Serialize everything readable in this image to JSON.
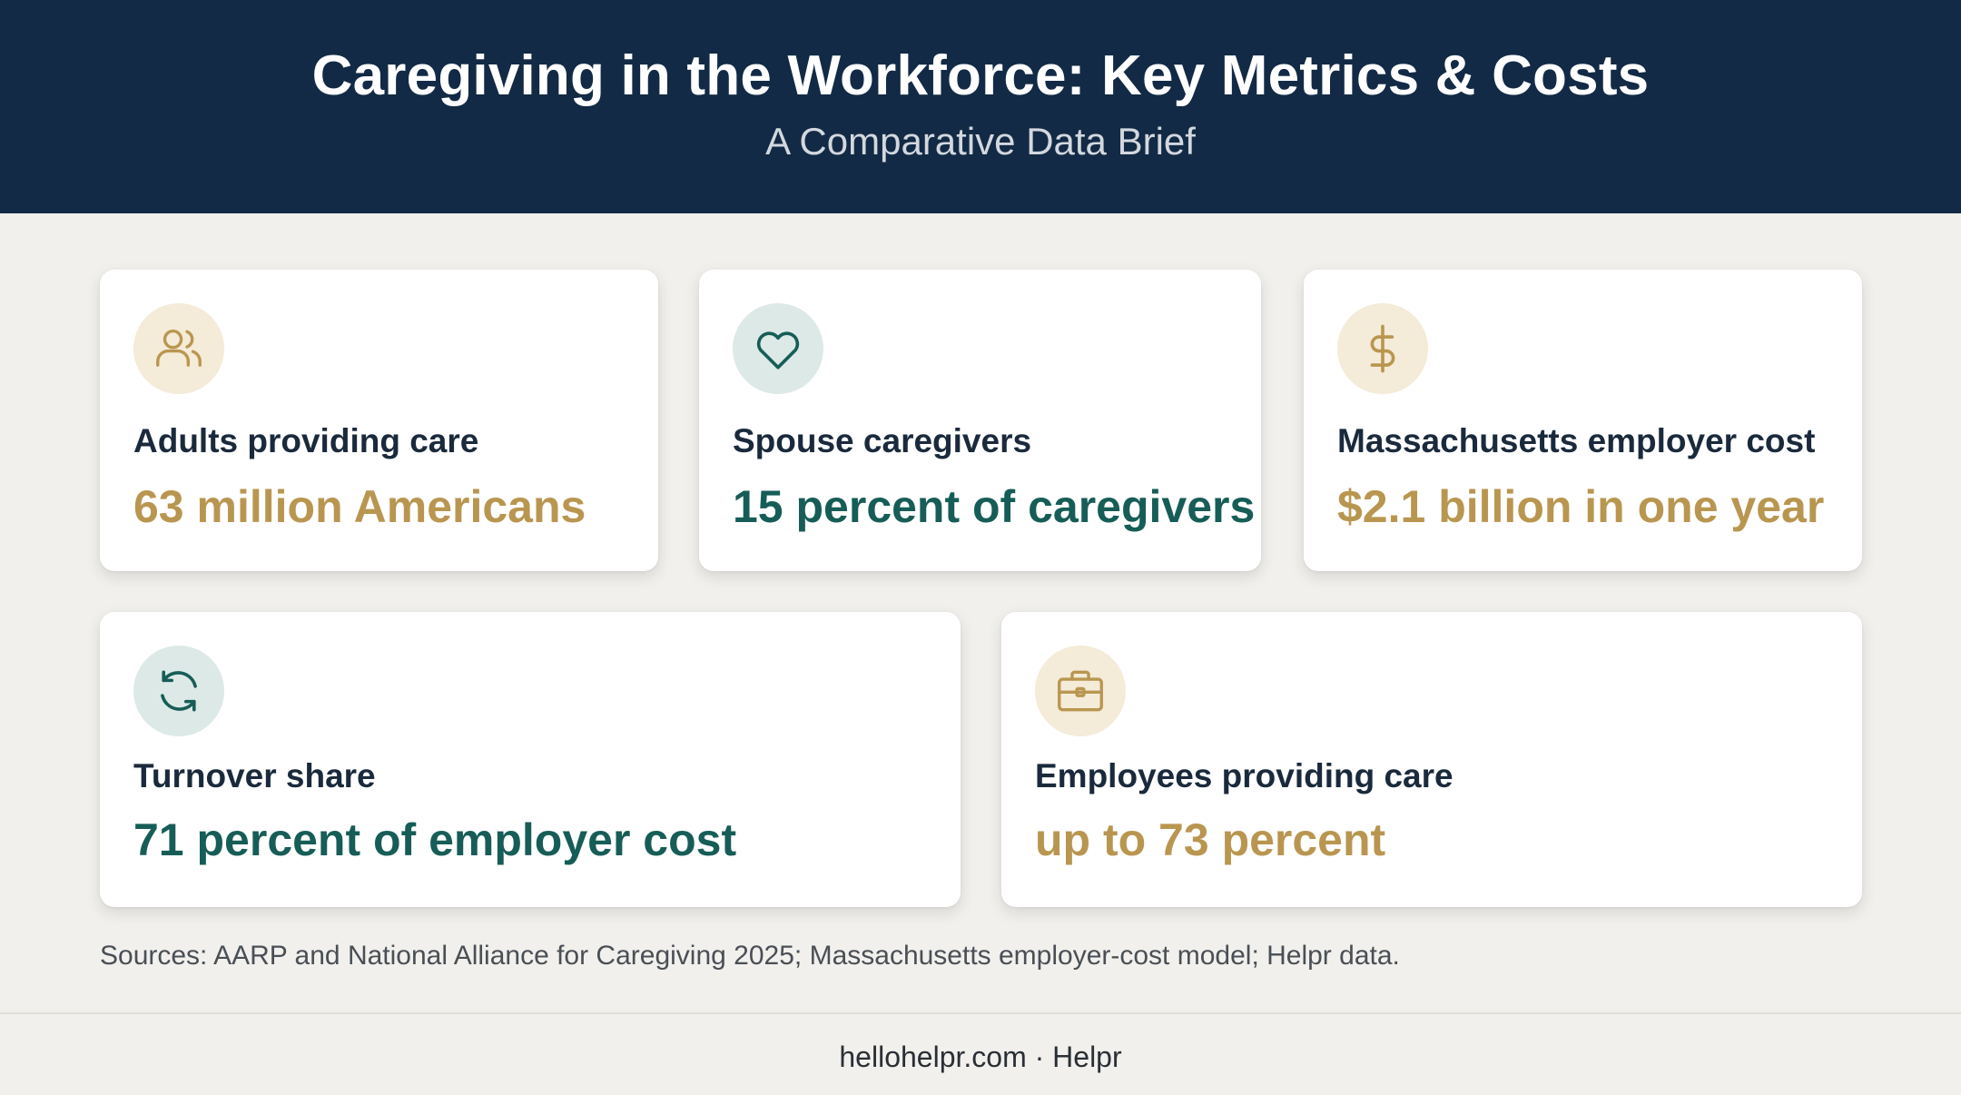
{
  "header": {
    "title": "Caregiving in the Workforce: Key Metrics & Costs",
    "subtitle": "A Comparative Data Brief"
  },
  "cards": [
    {
      "icon": "people-icon",
      "label": "Adults providing care",
      "value": "63 million Americans",
      "accent": "#b99650"
    },
    {
      "icon": "heart-icon",
      "label": "Spouse caregivers",
      "value": "15 percent of caregivers",
      "accent": "#175d57"
    },
    {
      "icon": "dollar-icon",
      "label": "Massachusetts employer cost",
      "value": "$2.1 billion in one year",
      "accent": "#b99650"
    },
    {
      "icon": "refresh-icon",
      "label": "Turnover share",
      "value": "71 percent of employer cost",
      "accent": "#175d57"
    },
    {
      "icon": "briefcase-icon",
      "label": "Employees providing care",
      "value": "up to 73 percent",
      "accent": "#b99650"
    }
  ],
  "sources": "Sources: AARP and National Alliance for Caregiving 2025; Massachusetts employer-cost model; Helpr data.",
  "footer": "hellohelpr.com · Helpr",
  "colors": {
    "header_bg": "#122a45",
    "gold": "#b99650",
    "teal": "#175d57",
    "page_bg": "#f1f0ec"
  }
}
